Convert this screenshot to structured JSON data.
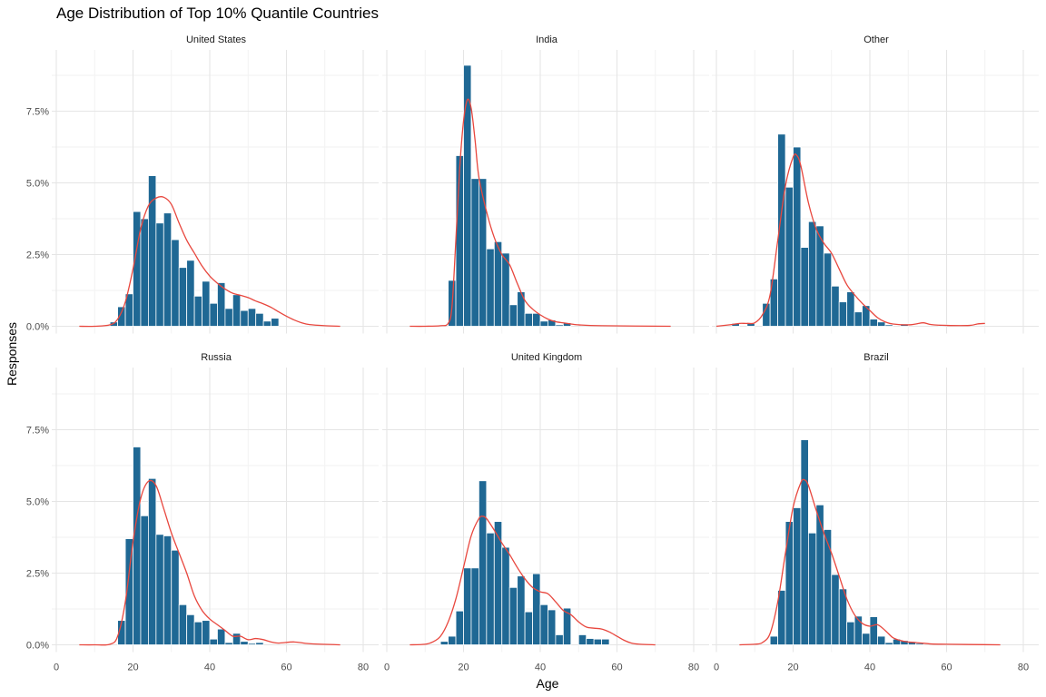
{
  "colors": {
    "bar_fill": "#1f6894",
    "bar_outline": "#ffffff",
    "density_line": "#e8473e",
    "grid_major": "#e5e5e5",
    "grid_minor": "#f2f2f2",
    "background": "#ffffff"
  },
  "chart_data": {
    "type": "bar",
    "title": "Age Distribution of Top 10% Quantile Countries",
    "xlabel": "Age",
    "ylabel": "Responses",
    "xlim": [
      0,
      80
    ],
    "ylim": [
      0,
      0.09
    ],
    "x_ticks": [
      0,
      20,
      40,
      60,
      80
    ],
    "y_ticks": [
      0,
      0.025,
      0.05,
      0.075
    ],
    "y_tick_labels": [
      "0.0%",
      "2.5%",
      "5.0%",
      "7.5%"
    ],
    "bin_width": 2,
    "layout": "facet grid 2 rows x 3 columns",
    "grid": true,
    "overlay": "density curve",
    "panels": [
      {
        "name": "United States",
        "bins": [
          [
            15,
            0.0015
          ],
          [
            17,
            0.0068
          ],
          [
            19,
            0.0113
          ],
          [
            21,
            0.04
          ],
          [
            23,
            0.0375
          ],
          [
            25,
            0.0525
          ],
          [
            27,
            0.036
          ],
          [
            29,
            0.0395
          ],
          [
            31,
            0.0302
          ],
          [
            33,
            0.0205
          ],
          [
            35,
            0.023
          ],
          [
            37,
            0.0105
          ],
          [
            39,
            0.0157
          ],
          [
            41,
            0.008
          ],
          [
            43,
            0.0152
          ],
          [
            45,
            0.0062
          ],
          [
            47,
            0.011
          ],
          [
            49,
            0.0055
          ],
          [
            51,
            0.0062
          ],
          [
            53,
            0.0045
          ],
          [
            55,
            0.0018
          ],
          [
            57,
            0.0028
          ]
        ],
        "density": [
          [
            6,
            0
          ],
          [
            10,
            0
          ],
          [
            14,
            0.0005
          ],
          [
            16,
            0.0025
          ],
          [
            18,
            0.0085
          ],
          [
            20,
            0.02
          ],
          [
            22,
            0.034
          ],
          [
            24,
            0.042
          ],
          [
            26,
            0.0447
          ],
          [
            28,
            0.045
          ],
          [
            30,
            0.0425
          ],
          [
            32,
            0.036
          ],
          [
            34,
            0.03
          ],
          [
            36,
            0.0255
          ],
          [
            38,
            0.021
          ],
          [
            40,
            0.0175
          ],
          [
            42,
            0.015
          ],
          [
            44,
            0.013
          ],
          [
            46,
            0.0115
          ],
          [
            48,
            0.0108
          ],
          [
            50,
            0.01
          ],
          [
            52,
            0.0088
          ],
          [
            54,
            0.0078
          ],
          [
            56,
            0.0066
          ],
          [
            58,
            0.005
          ],
          [
            60,
            0.0035
          ],
          [
            62,
            0.0022
          ],
          [
            64,
            0.0012
          ],
          [
            66,
            0.0006
          ],
          [
            70,
            0.0002
          ],
          [
            74,
            0
          ]
        ]
      },
      {
        "name": "India",
        "bins": [
          [
            17,
            0.016
          ],
          [
            19,
            0.0595
          ],
          [
            21,
            0.091
          ],
          [
            23,
            0.0515
          ],
          [
            25,
            0.0515
          ],
          [
            27,
            0.027
          ],
          [
            29,
            0.0295
          ],
          [
            31,
            0.0255
          ],
          [
            33,
            0.0075
          ],
          [
            35,
            0.012
          ],
          [
            37,
            0.0045
          ],
          [
            39,
            0.0045
          ],
          [
            41,
            0.0018
          ],
          [
            43,
            0.0022
          ],
          [
            45,
            0.0005
          ],
          [
            47,
            0.0012
          ]
        ],
        "density": [
          [
            6,
            0
          ],
          [
            10,
            0
          ],
          [
            14,
            0.0002
          ],
          [
            16,
            0.001
          ],
          [
            17,
            0.007
          ],
          [
            18,
            0.03
          ],
          [
            19,
            0.055
          ],
          [
            20,
            0.0715
          ],
          [
            21,
            0.079
          ],
          [
            22,
            0.076
          ],
          [
            23,
            0.065
          ],
          [
            24,
            0.052
          ],
          [
            26,
            0.04
          ],
          [
            28,
            0.031
          ],
          [
            30,
            0.025
          ],
          [
            32,
            0.0215
          ],
          [
            34,
            0.015
          ],
          [
            36,
            0.009
          ],
          [
            38,
            0.006
          ],
          [
            40,
            0.004
          ],
          [
            42,
            0.0025
          ],
          [
            44,
            0.0016
          ],
          [
            46,
            0.0012
          ],
          [
            48,
            0.0008
          ],
          [
            50,
            0.0005
          ],
          [
            56,
            0.0002
          ],
          [
            74,
            0
          ]
        ]
      },
      {
        "name": "Other",
        "bins": [
          [
            5,
            0.001
          ],
          [
            9,
            0.001
          ],
          [
            13,
            0.008
          ],
          [
            15,
            0.0165
          ],
          [
            17,
            0.067
          ],
          [
            19,
            0.0485
          ],
          [
            21,
            0.0625
          ],
          [
            23,
            0.0275
          ],
          [
            25,
            0.0365
          ],
          [
            27,
            0.035
          ],
          [
            29,
            0.0255
          ],
          [
            31,
            0.014
          ],
          [
            33,
            0.0085
          ],
          [
            35,
            0.012
          ],
          [
            37,
            0.005
          ],
          [
            39,
            0.0072
          ],
          [
            41,
            0.0025
          ],
          [
            43,
            0.0015
          ],
          [
            45,
            0.0005
          ],
          [
            49,
            0.0008
          ],
          [
            59,
            0.0005
          ]
        ],
        "density": [
          [
            0,
            0
          ],
          [
            4,
            0.0006
          ],
          [
            6,
            0.001
          ],
          [
            8,
            0.001
          ],
          [
            10,
            0.0012
          ],
          [
            12,
            0.004
          ],
          [
            14,
            0.011
          ],
          [
            16,
            0.03
          ],
          [
            18,
            0.049
          ],
          [
            20,
            0.059
          ],
          [
            21,
            0.0595
          ],
          [
            22,
            0.056
          ],
          [
            24,
            0.043
          ],
          [
            26,
            0.034
          ],
          [
            28,
            0.029
          ],
          [
            30,
            0.0255
          ],
          [
            32,
            0.02
          ],
          [
            34,
            0.0145
          ],
          [
            36,
            0.011
          ],
          [
            38,
            0.008
          ],
          [
            40,
            0.0055
          ],
          [
            42,
            0.003
          ],
          [
            44,
            0.0015
          ],
          [
            46,
            0.0008
          ],
          [
            50,
            0.0005
          ],
          [
            52,
            0.0008
          ],
          [
            54,
            0.0012
          ],
          [
            56,
            0.0006
          ],
          [
            60,
            0.0003
          ],
          [
            66,
            0.0003
          ],
          [
            68,
            0.0008
          ],
          [
            70,
            0.001
          ]
        ]
      },
      {
        "name": "Russia",
        "bins": [
          [
            17,
            0.0085
          ],
          [
            19,
            0.037
          ],
          [
            21,
            0.069
          ],
          [
            23,
            0.045
          ],
          [
            25,
            0.058
          ],
          [
            27,
            0.0385
          ],
          [
            29,
            0.038
          ],
          [
            31,
            0.033
          ],
          [
            33,
            0.014
          ],
          [
            35,
            0.0105
          ],
          [
            37,
            0.008
          ],
          [
            39,
            0.0085
          ],
          [
            41,
            0.002
          ],
          [
            43,
            0.0055
          ],
          [
            45,
            0.0008
          ],
          [
            47,
            0.004
          ],
          [
            49,
            0.0012
          ],
          [
            51,
            0.0005
          ],
          [
            53,
            0.0008
          ]
        ],
        "density": [
          [
            6,
            0
          ],
          [
            10,
            0
          ],
          [
            14,
            0.0002
          ],
          [
            16,
            0.003
          ],
          [
            18,
            0.015
          ],
          [
            20,
            0.036
          ],
          [
            22,
            0.051
          ],
          [
            24,
            0.057
          ],
          [
            26,
            0.0555
          ],
          [
            28,
            0.0475
          ],
          [
            30,
            0.039
          ],
          [
            32,
            0.032
          ],
          [
            34,
            0.025
          ],
          [
            36,
            0.017
          ],
          [
            38,
            0.012
          ],
          [
            40,
            0.009
          ],
          [
            42,
            0.007
          ],
          [
            44,
            0.005
          ],
          [
            46,
            0.003
          ],
          [
            48,
            0.003
          ],
          [
            50,
            0.0018
          ],
          [
            52,
            0.0022
          ],
          [
            54,
            0.0018
          ],
          [
            56,
            0.001
          ],
          [
            58,
            0.0006
          ],
          [
            62,
            0.001
          ],
          [
            66,
            0.0004
          ],
          [
            74,
            0
          ]
        ]
      },
      {
        "name": "United Kingdom",
        "bins": [
          [
            15,
            0.0012
          ],
          [
            17,
            0.003
          ],
          [
            19,
            0.0118
          ],
          [
            21,
            0.0268
          ],
          [
            23,
            0.0268
          ],
          [
            25,
            0.0572
          ],
          [
            27,
            0.039
          ],
          [
            29,
            0.043
          ],
          [
            31,
            0.034
          ],
          [
            33,
            0.02
          ],
          [
            35,
            0.024
          ],
          [
            37,
            0.0115
          ],
          [
            39,
            0.0248
          ],
          [
            41,
            0.014
          ],
          [
            43,
            0.0122
          ],
          [
            45,
            0.0035
          ],
          [
            47,
            0.0128
          ],
          [
            51,
            0.0035
          ],
          [
            53,
            0.0022
          ],
          [
            55,
            0.002
          ],
          [
            57,
            0.002
          ]
        ],
        "density": [
          [
            6,
            0
          ],
          [
            10,
            0.0002
          ],
          [
            12,
            0.001
          ],
          [
            14,
            0.003
          ],
          [
            16,
            0.008
          ],
          [
            18,
            0.016
          ],
          [
            20,
            0.027
          ],
          [
            22,
            0.038
          ],
          [
            24,
            0.044
          ],
          [
            25,
            0.0448
          ],
          [
            26,
            0.044
          ],
          [
            28,
            0.04
          ],
          [
            30,
            0.0355
          ],
          [
            32,
            0.0315
          ],
          [
            34,
            0.027
          ],
          [
            36,
            0.023
          ],
          [
            38,
            0.02
          ],
          [
            40,
            0.0185
          ],
          [
            42,
            0.0178
          ],
          [
            44,
            0.015
          ],
          [
            46,
            0.012
          ],
          [
            48,
            0.0105
          ],
          [
            50,
            0.008
          ],
          [
            52,
            0.0062
          ],
          [
            54,
            0.0058
          ],
          [
            56,
            0.0055
          ],
          [
            58,
            0.0045
          ],
          [
            60,
            0.003
          ],
          [
            62,
            0.0015
          ],
          [
            64,
            0.0005
          ],
          [
            66,
            0.0002
          ],
          [
            70,
            0
          ]
        ]
      },
      {
        "name": "Brazil",
        "bins": [
          [
            15,
            0.003
          ],
          [
            17,
            0.019
          ],
          [
            19,
            0.043
          ],
          [
            21,
            0.0478
          ],
          [
            23,
            0.0715
          ],
          [
            25,
            0.039
          ],
          [
            27,
            0.0488
          ],
          [
            29,
            0.0402
          ],
          [
            31,
            0.0245
          ],
          [
            33,
            0.0195
          ],
          [
            35,
            0.008
          ],
          [
            37,
            0.01
          ],
          [
            39,
            0.004
          ],
          [
            41,
            0.0098
          ],
          [
            43,
            0.003
          ],
          [
            45,
            0.0008
          ],
          [
            47,
            0.002
          ],
          [
            49,
            0.0015
          ],
          [
            51,
            0.001
          ],
          [
            53,
            0.0005
          ]
        ],
        "density": [
          [
            6,
            0
          ],
          [
            10,
            0.0002
          ],
          [
            12,
            0.0008
          ],
          [
            14,
            0.004
          ],
          [
            16,
            0.015
          ],
          [
            18,
            0.032
          ],
          [
            20,
            0.048
          ],
          [
            22,
            0.0565
          ],
          [
            23,
            0.0575
          ],
          [
            24,
            0.0555
          ],
          [
            26,
            0.047
          ],
          [
            28,
            0.039
          ],
          [
            30,
            0.032
          ],
          [
            32,
            0.024
          ],
          [
            34,
            0.016
          ],
          [
            36,
            0.0105
          ],
          [
            38,
            0.0075
          ],
          [
            40,
            0.0065
          ],
          [
            42,
            0.007
          ],
          [
            44,
            0.005
          ],
          [
            46,
            0.0025
          ],
          [
            48,
            0.0015
          ],
          [
            50,
            0.001
          ],
          [
            52,
            0.0008
          ],
          [
            56,
            0.0003
          ],
          [
            60,
            0.0002
          ],
          [
            66,
            0.0001
          ],
          [
            74,
            0
          ]
        ]
      }
    ]
  }
}
